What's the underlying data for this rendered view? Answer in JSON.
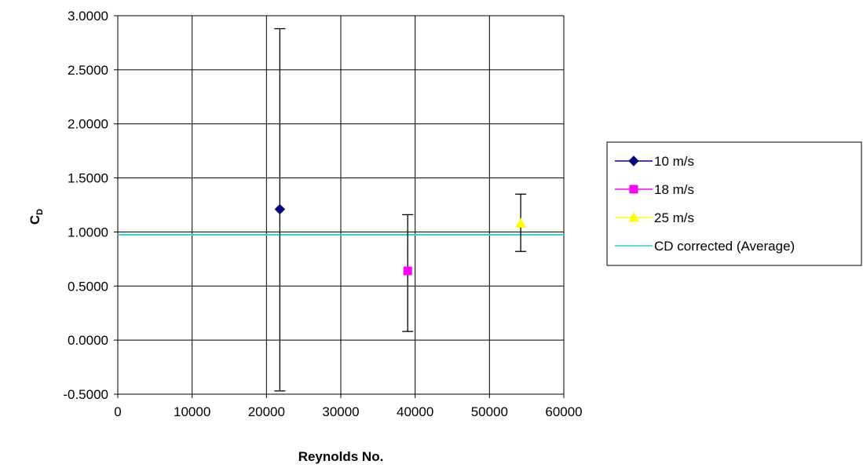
{
  "chart_data": {
    "type": "scatter",
    "xlabel": "Reynolds No.",
    "ylabel_main": "C",
    "ylabel_sub": "D",
    "xlim": [
      0,
      60000
    ],
    "ylim": [
      -0.5,
      3.0
    ],
    "xticks": [
      0,
      10000,
      20000,
      30000,
      40000,
      50000,
      60000
    ],
    "yticks": [
      "-0.5000",
      "0.0000",
      "0.5000",
      "1.0000",
      "1.5000",
      "2.0000",
      "2.5000",
      "3.0000"
    ],
    "grid": true,
    "legend_position": "right",
    "series": [
      {
        "name": "10 m/s",
        "marker": "diamond",
        "color": "#000080",
        "x": 21800,
        "y": 1.21,
        "error_low": -0.47,
        "error_high": 2.88
      },
      {
        "name": "18 m/s",
        "marker": "square",
        "color": "#ff00ff",
        "x": 39000,
        "y": 0.64,
        "error_low": 0.08,
        "error_high": 1.16
      },
      {
        "name": "25 m/s",
        "marker": "triangle",
        "color": "#ffff00",
        "x": 54200,
        "y": 1.08,
        "error_low": 0.82,
        "error_high": 1.35
      }
    ],
    "reference_line": {
      "name": "CD  corrected (Average)",
      "y": 0.975,
      "color": "#33cccc"
    }
  }
}
